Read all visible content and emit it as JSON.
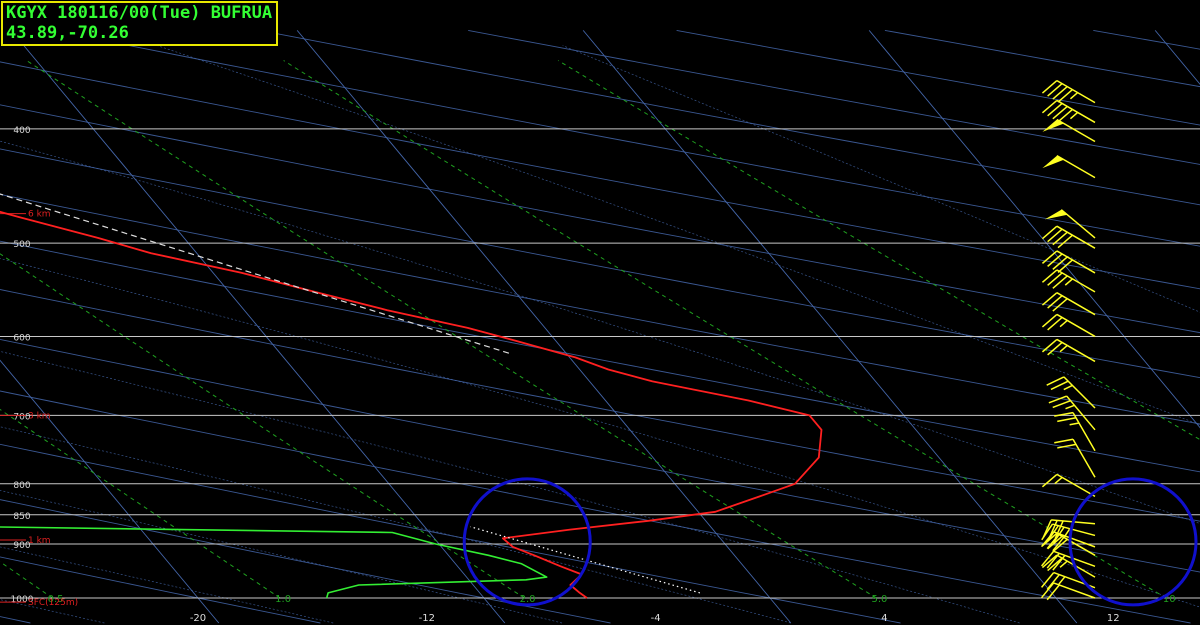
{
  "header": {
    "title": "KGYX 180116/00(Tue) BUFRUA",
    "location": "43.89,-70.26"
  },
  "colors": {
    "temperature": "#ff2020",
    "dewpoint": "#33ee33",
    "wind_barbs": "#ffff22",
    "isobars": "#c8c8c8",
    "isotherms": "#4466aa",
    "mixing_ratio": "#1fa01f",
    "annotation_circles": "#1010cc",
    "height_labels": "#dd2020",
    "parcel_trace": "#ffffff",
    "title_text": "#33ff33",
    "title_border": "#e8e800"
  },
  "chart_data": {
    "type": "line",
    "title": "KGYX 180116/00(Tue) BUFRUA",
    "subtitle": "43.89,-70.26",
    "xlabel": "",
    "ylabel": "",
    "y_scale": "log-pressure",
    "ylim": [
      1000,
      350
    ],
    "xlim": [
      -21,
      15
    ],
    "grid": true,
    "pressure_ticks": [
      400,
      500,
      600,
      700,
      800,
      850,
      900,
      1000
    ],
    "temperature_ticks": [
      "-20",
      "-12",
      "-4",
      "4",
      "12"
    ],
    "mixing_ratio_labels": [
      "0.5",
      "1.0",
      "2.0",
      "5.0",
      "10"
    ],
    "height_labels": [
      "6 km",
      "3 km",
      "1 km",
      "SFC(125m)"
    ],
    "series": [
      {
        "name": "Temperature",
        "style": "solid",
        "points": [
          {
            "p": 1000,
            "t": -6.4
          },
          {
            "p": 990,
            "t": -6.5
          },
          {
            "p": 975,
            "t": -6.6
          },
          {
            "p": 955,
            "t": -5.9
          },
          {
            "p": 940,
            "t": -6.4
          },
          {
            "p": 920,
            "t": -7.0
          },
          {
            "p": 905,
            "t": -7.5
          },
          {
            "p": 890,
            "t": -7.6
          },
          {
            "p": 875,
            "t": -5.0
          },
          {
            "p": 860,
            "t": -2.0
          },
          {
            "p": 845,
            "t": 0.6
          },
          {
            "p": 820,
            "t": 2.6
          },
          {
            "p": 800,
            "t": 4.2
          },
          {
            "p": 760,
            "t": 5.8
          },
          {
            "p": 720,
            "t": 6.7
          },
          {
            "p": 700,
            "t": 6.7
          },
          {
            "p": 680,
            "t": 5.0
          },
          {
            "p": 655,
            "t": 2.2
          },
          {
            "p": 640,
            "t": 1.0
          },
          {
            "p": 625,
            "t": 0.2
          },
          {
            "p": 605,
            "t": -1.4
          },
          {
            "p": 590,
            "t": -2.7
          },
          {
            "p": 570,
            "t": -5.0
          },
          {
            "p": 550,
            "t": -7.0
          },
          {
            "p": 530,
            "t": -9.0
          },
          {
            "p": 510,
            "t": -11.6
          },
          {
            "p": 495,
            "t": -13.0
          },
          {
            "p": 475,
            "t": -15.2
          },
          {
            "p": 450,
            "t": -17.8
          },
          {
            "p": 425,
            "t": -20.4
          },
          {
            "p": 400,
            "t": -22.0
          },
          {
            "p": 380,
            "t": -23.8
          },
          {
            "p": 365,
            "t": -24.2
          }
        ]
      },
      {
        "name": "Dewpoint",
        "style": "solid",
        "points": [
          {
            "p": 1000,
            "t": -15.5
          },
          {
            "p": 990,
            "t": -15.3
          },
          {
            "p": 975,
            "t": -14.0
          },
          {
            "p": 965,
            "t": -8.0
          },
          {
            "p": 960,
            "t": -7.2
          },
          {
            "p": 935,
            "t": -7.7
          },
          {
            "p": 920,
            "t": -8.6
          },
          {
            "p": 900,
            "t": -10.1
          },
          {
            "p": 880,
            "t": -11.3
          },
          {
            "p": 870,
            "t": -25.6
          },
          {
            "p": 858,
            "t": -27.0
          },
          {
            "p": 825,
            "t": -26.4
          },
          {
            "p": 800,
            "t": -27.5
          },
          {
            "p": 785,
            "t": -30.0
          },
          {
            "p": 700,
            "t": -35.0
          },
          {
            "p": 690,
            "t": -24.8
          },
          {
            "p": 680,
            "t": -30.0
          },
          {
            "p": 666,
            "t": -26.0
          },
          {
            "p": 652,
            "t": -29.0
          },
          {
            "p": 635,
            "t": -23.0
          },
          {
            "p": 622,
            "t": -32.0
          },
          {
            "p": 606,
            "t": -24.0
          },
          {
            "p": 595,
            "t": -26.0
          },
          {
            "p": 545,
            "t": -50.0
          },
          {
            "p": 500,
            "t": -50.0
          },
          {
            "p": 468,
            "t": -37.0
          },
          {
            "p": 460,
            "t": -38.0
          },
          {
            "p": 428,
            "t": -42.0
          },
          {
            "p": 385,
            "t": -38.7
          },
          {
            "p": 381,
            "t": -40.0
          }
        ]
      },
      {
        "name": "Parcel (lower)",
        "style": "dotted",
        "points": [
          {
            "p": 990,
            "t": -2.3
          },
          {
            "p": 870,
            "t": -8.4
          }
        ]
      },
      {
        "name": "Parcel (upper)",
        "style": "dashed",
        "points": [
          {
            "p": 620,
            "t": -2.0
          },
          {
            "p": 360,
            "t": -25.0
          }
        ]
      }
    ],
    "winds": [
      {
        "p": 1000,
        "dir": 290,
        "spd": 20
      },
      {
        "p": 980,
        "dir": 290,
        "spd": 25
      },
      {
        "p": 960,
        "dir": 300,
        "spd": 25
      },
      {
        "p": 940,
        "dir": 290,
        "spd": 30
      },
      {
        "p": 920,
        "dir": 300,
        "spd": 30
      },
      {
        "p": 905,
        "dir": 290,
        "spd": 30
      },
      {
        "p": 885,
        "dir": 285,
        "spd": 35
      },
      {
        "p": 865,
        "dir": 275,
        "spd": 30
      },
      {
        "p": 820,
        "dir": 300,
        "spd": 15
      },
      {
        "p": 790,
        "dir": 330,
        "spd": 20
      },
      {
        "p": 750,
        "dir": 330,
        "spd": 25
      },
      {
        "p": 720,
        "dir": 320,
        "spd": 25
      },
      {
        "p": 690,
        "dir": 315,
        "spd": 25
      },
      {
        "p": 630,
        "dir": 300,
        "spd": 25
      },
      {
        "p": 600,
        "dir": 300,
        "spd": 25
      },
      {
        "p": 575,
        "dir": 300,
        "spd": 30
      },
      {
        "p": 550,
        "dir": 300,
        "spd": 35
      },
      {
        "p": 530,
        "dir": 300,
        "spd": 40
      },
      {
        "p": 505,
        "dir": 300,
        "spd": 40
      },
      {
        "p": 495,
        "dir": 310,
        "spd": 50
      },
      {
        "p": 440,
        "dir": 300,
        "spd": 50
      },
      {
        "p": 410,
        "dir": 300,
        "spd": 50
      },
      {
        "p": 395,
        "dir": 300,
        "spd": 45
      },
      {
        "p": 380,
        "dir": 300,
        "spd": 45
      }
    ],
    "annotations": [
      {
        "type": "circle",
        "p": 905,
        "t": -7.0,
        "note": "highlighted low-level thermal profile"
      },
      {
        "type": "circle",
        "p": 905,
        "t": 12.8,
        "note": "highlighted low-level wind barbs"
      }
    ]
  }
}
